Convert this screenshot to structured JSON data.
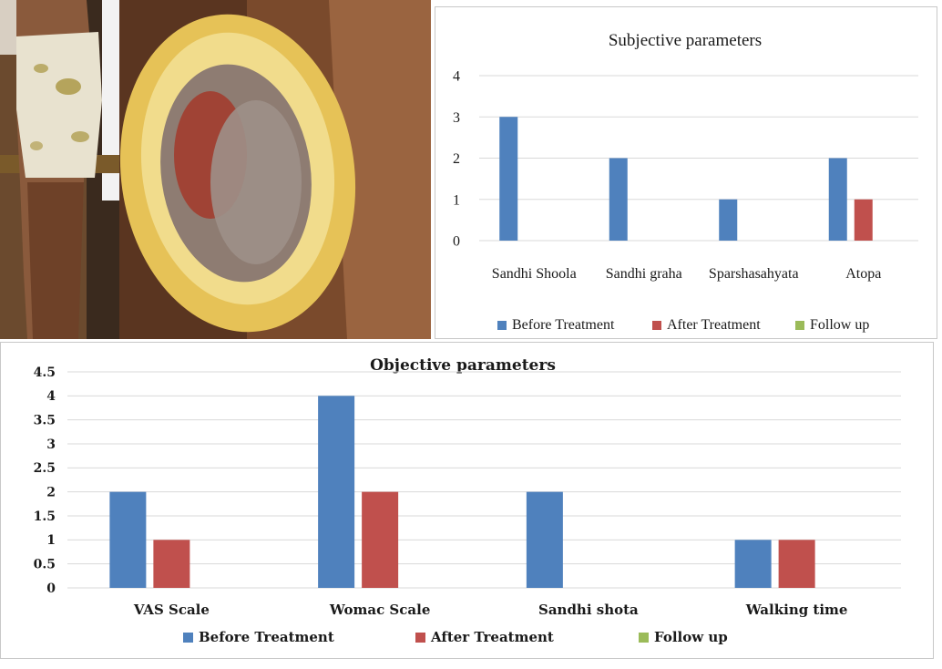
{
  "photos": {
    "left": "knee-bandage-photo",
    "right": "wheat-dough-ring-photo"
  },
  "colors": {
    "before": "#4f81bd",
    "after": "#c0504d",
    "follow": "#9bbb59",
    "grid": "#d9d9d9"
  },
  "chart_data": [
    {
      "type": "bar",
      "title": "Subjective parameters",
      "categories": [
        "Sandhi Shoola",
        "Sandhi graha",
        "Sparshasahyata",
        "Atopa"
      ],
      "series": [
        {
          "name": "Before Treatment",
          "values": [
            3,
            2,
            1,
            2
          ]
        },
        {
          "name": "After Treatment",
          "values": [
            0,
            0,
            0,
            1
          ]
        },
        {
          "name": "Follow up",
          "values": [
            0,
            0,
            0,
            0
          ]
        }
      ],
      "yticks": [
        "0",
        "1",
        "2",
        "3",
        "4"
      ],
      "ylim": [
        0,
        4
      ],
      "grid": true,
      "legend": "bottom"
    },
    {
      "type": "bar",
      "title": "Objective parameters",
      "categories": [
        "VAS Scale",
        "Womac Scale",
        "Sandhi shota",
        "Walking time"
      ],
      "series": [
        {
          "name": "Before Treatment",
          "values": [
            2,
            4,
            2,
            1
          ]
        },
        {
          "name": "After Treatment",
          "values": [
            1,
            2,
            0,
            1
          ]
        },
        {
          "name": "Follow up",
          "values": [
            0,
            0,
            0,
            0
          ]
        }
      ],
      "yticks": [
        "0",
        "0.5",
        "1",
        "1.5",
        "2",
        "2.5",
        "3",
        "3.5",
        "4",
        "4.5"
      ],
      "ylim": [
        0,
        4.5
      ],
      "grid": true,
      "legend": "bottom"
    }
  ]
}
